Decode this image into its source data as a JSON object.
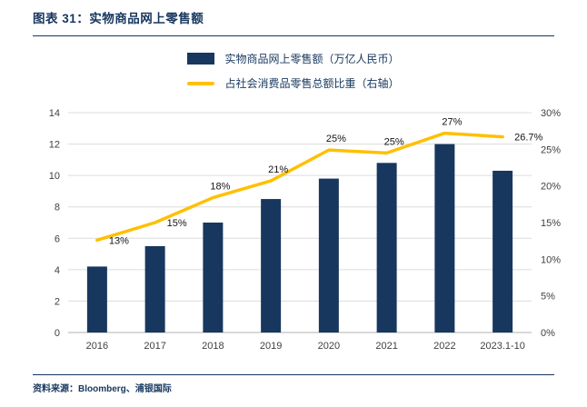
{
  "header": {
    "title": "图表 31：实物商品网上零售额"
  },
  "legend": {
    "items": [
      {
        "label": "实物商品网上零售额（万亿人民币）",
        "swatch": "bar",
        "color": "#17375e"
      },
      {
        "label": "占社会消费品零售总额比重（右轴）",
        "swatch": "line",
        "color": "#ffc000"
      }
    ]
  },
  "chart_data": {
    "type": "bar+line",
    "categories": [
      "2016",
      "2017",
      "2018",
      "2019",
      "2020",
      "2021",
      "2022",
      "2023.1-10"
    ],
    "series": [
      {
        "name": "实物商品网上零售额（万亿人民币）",
        "type": "bar",
        "axis": "left",
        "color": "#17375e",
        "values": [
          4.2,
          5.5,
          7.0,
          8.5,
          9.8,
          10.8,
          12.0,
          10.3
        ]
      },
      {
        "name": "占社会消费品零售总额比重（右轴）",
        "type": "line",
        "axis": "right",
        "color": "#ffc000",
        "values": [
          12.6,
          15.0,
          18.4,
          20.7,
          24.9,
          24.5,
          27.2,
          26.7
        ],
        "point_labels": [
          "13%",
          "15%",
          "18%",
          "21%",
          "25%",
          "25%",
          "27%",
          "26.7%"
        ]
      }
    ],
    "left_axis": {
      "min": 0,
      "max": 14,
      "ticks": [
        0,
        2,
        4,
        6,
        8,
        10,
        12,
        14
      ]
    },
    "right_axis": {
      "min": 0,
      "max": 30,
      "ticks": [
        0,
        5,
        10,
        15,
        20,
        25,
        30
      ],
      "tick_labels": [
        "0%",
        "5%",
        "10%",
        "15%",
        "20%",
        "25%",
        "30%"
      ],
      "position": "right"
    },
    "grid": true,
    "legend_position": "top"
  },
  "footer": {
    "source": "资料来源：Bloomberg、浦银国际"
  }
}
